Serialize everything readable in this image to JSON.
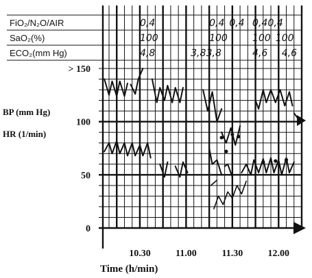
{
  "chart_data": {
    "type": "line",
    "table_rows": [
      {
        "label": "FiO₂/N₂O/AIR",
        "entries": [
          {
            "t": 630,
            "text": "0,4"
          },
          {
            "t": 675,
            "text": "0,4"
          },
          {
            "t": 688,
            "text": "0,4"
          },
          {
            "t": 703,
            "text": "0,4"
          },
          {
            "t": 713,
            "text": "0,4"
          }
        ]
      },
      {
        "label": "SaO₂(%)",
        "entries": [
          {
            "t": 630,
            "text": "100"
          },
          {
            "t": 675,
            "text": "100"
          },
          {
            "t": 703,
            "text": "100"
          },
          {
            "t": 718,
            "text": "100"
          }
        ]
      },
      {
        "label": "ECO₂(mm Hg)",
        "entries": [
          {
            "t": 630,
            "text": "4,8"
          },
          {
            "t": 663,
            "text": "3,8"
          },
          {
            "t": 673,
            "text": "3,8"
          },
          {
            "t": 703,
            "text": "4,6"
          },
          {
            "t": 722,
            "text": "4,6"
          }
        ]
      }
    ],
    "y_ticks": [
      {
        "value": 150,
        "label": "> 150"
      },
      {
        "value": 100,
        "label": "100"
      },
      {
        "value": 50,
        "label": "50"
      },
      {
        "value": 0,
        "label": "0"
      }
    ],
    "x_ticks": [
      {
        "value": 630,
        "label": "10.30"
      },
      {
        "value": 660,
        "label": "11.00"
      },
      {
        "value": 690,
        "label": "11.30"
      },
      {
        "value": 720,
        "label": "12.00"
      }
    ],
    "ylabel_bp": "BP (mm Hg)",
    "ylabel_hr": "HR (1/min)",
    "xlabel": "Time (h/min)",
    "xlim": [
      606,
      735
    ],
    "ylim": [
      0,
      150
    ],
    "series": [
      {
        "kind": "bp_systolic",
        "segments": [
          [
            [
              607,
              140
            ],
            [
              610,
              125
            ],
            [
              612,
              138
            ],
            [
              615,
              124
            ],
            [
              617,
              138
            ],
            [
              620,
              124
            ],
            [
              622,
              136
            ]
          ],
          [
            [
              624,
              135
            ],
            [
              627,
              126
            ],
            [
              629,
              140
            ],
            [
              632,
              150
            ]
          ],
          [
            [
              638,
              140
            ],
            [
              641,
              118
            ],
            [
              643,
              132
            ],
            [
              646,
              120
            ],
            [
              648,
              134
            ],
            [
              651,
              118
            ],
            [
              653,
              132
            ],
            [
              656,
              118
            ],
            [
              658,
              132
            ]
          ],
          [
            [
              671,
              130
            ],
            [
              674,
              110
            ],
            [
              677,
              128
            ],
            [
              680,
              100
            ],
            [
              683,
              112
            ]
          ],
          [
            [
              683,
              90
            ],
            [
              686,
              80
            ],
            [
              689,
              94
            ],
            [
              692,
              78
            ],
            [
              695,
              96
            ]
          ],
          [
            [
              705,
              120
            ],
            [
              707,
              112
            ],
            [
              710,
              130
            ],
            [
              712,
              118
            ],
            [
              715,
              130
            ],
            [
              718,
              118
            ],
            [
              721,
              130
            ],
            [
              724,
              115
            ],
            [
              727,
              128
            ],
            [
              729,
              115
            ]
          ],
          [
            [
              730,
              108
            ],
            [
              734,
              100
            ]
          ]
        ]
      },
      {
        "kind": "bp_diastolic",
        "segments": [
          [
            [
              607,
              72
            ],
            [
              610,
              80
            ],
            [
              612,
              70
            ],
            [
              615,
              82
            ],
            [
              617,
              70
            ],
            [
              620,
              80
            ],
            [
              622,
              68
            ],
            [
              625,
              80
            ],
            [
              627,
              68
            ],
            [
              630,
              78
            ],
            [
              632,
              68
            ],
            [
              635,
              80
            ],
            [
              637,
              66
            ]
          ],
          [
            [
              643,
              60
            ],
            [
              646,
              48
            ],
            [
              648,
              62
            ]
          ],
          [
            [
              653,
              58
            ],
            [
              656,
              48
            ],
            [
              658,
              62
            ],
            [
              661,
              52
            ]
          ],
          [
            [
              675,
              75
            ],
            [
              677,
              60
            ],
            [
              680,
              64
            ],
            [
              683,
              50
            ]
          ],
          [
            [
              685,
              58
            ],
            [
              687,
              60
            ],
            [
              690,
              48
            ]
          ],
          [
            [
              696,
              52
            ],
            [
              699,
              60
            ],
            [
              702,
              50
            ],
            [
              704,
              64
            ],
            [
              707,
              52
            ],
            [
              710,
              65
            ],
            [
              712,
              52
            ],
            [
              715,
              66
            ],
            [
              717,
              52
            ],
            [
              720,
              64
            ],
            [
              722,
              50
            ],
            [
              725,
              66
            ],
            [
              727,
              52
            ],
            [
              730,
              62
            ]
          ]
        ]
      },
      {
        "kind": "heart_rate",
        "segments": [
          [
            [
              678,
              18
            ],
            [
              681,
              30
            ],
            [
              684,
              22
            ],
            [
              687,
              34
            ],
            [
              690,
              28
            ],
            [
              693,
              40
            ],
            [
              696,
              32
            ],
            [
              699,
              44
            ]
          ],
          [
            [
              676,
              40
            ],
            [
              680,
              45
            ]
          ]
        ]
      }
    ]
  }
}
